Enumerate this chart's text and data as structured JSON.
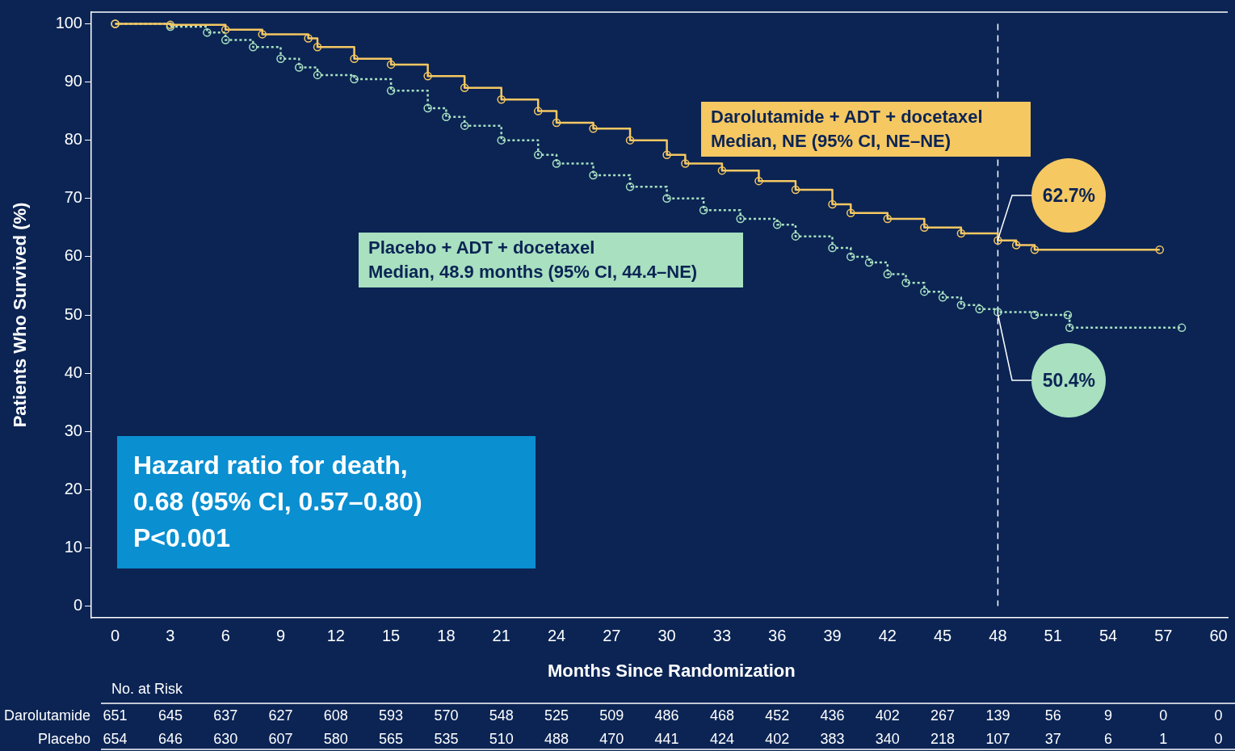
{
  "chart_data": {
    "type": "step",
    "xlabel": "Months Since Randomization",
    "ylabel": "Patients Who Survived (%)",
    "xlim": [
      -1.3,
      60.5
    ],
    "xticks": [
      0,
      3,
      6,
      9,
      12,
      15,
      18,
      21,
      24,
      27,
      30,
      33,
      36,
      39,
      42,
      45,
      48,
      51,
      54,
      57,
      60
    ],
    "ylim": [
      -2,
      102
    ],
    "yticks": [
      0,
      10,
      20,
      30,
      40,
      50,
      60,
      70,
      80,
      90,
      100
    ],
    "grid": false,
    "legend": false,
    "marker": "circle",
    "series": [
      {
        "name": "Darolutamide + ADT + docetaxel",
        "color": "#f5c862",
        "line_style": "solid",
        "x": [
          0,
          3,
          6,
          8,
          10.5,
          11,
          13,
          15,
          17,
          19,
          21,
          23,
          24,
          26,
          28,
          30,
          31,
          33,
          35,
          37,
          39,
          40,
          42,
          44,
          46,
          48,
          49,
          50,
          56.8
        ],
        "values": [
          100,
          99.8,
          99,
          98.2,
          97.5,
          96,
          94,
          93,
          91,
          89,
          87,
          85,
          83,
          82,
          80,
          77.5,
          76,
          74.8,
          73,
          71.5,
          69,
          67.5,
          66.5,
          65,
          64,
          62.8,
          62,
          61.2,
          61.2
        ]
      },
      {
        "name": "Placebo + ADT + docetaxel",
        "color": "#a8e0c0",
        "line_style": "dotted",
        "x": [
          0,
          3,
          5,
          6,
          7.5,
          9,
          10,
          11,
          13,
          15,
          17,
          18,
          19,
          21,
          23,
          24,
          26,
          28,
          30,
          32,
          34,
          36,
          37,
          39,
          40,
          41,
          42,
          43,
          44,
          45,
          46,
          47,
          48,
          50,
          51.8,
          51.9,
          58
        ],
        "values": [
          100,
          99.5,
          98.5,
          97.2,
          96,
          94,
          92.5,
          91.2,
          90.5,
          88.5,
          85.5,
          84,
          82.5,
          80,
          77.5,
          76,
          74,
          72,
          70,
          68,
          66.5,
          65.5,
          63.5,
          61.5,
          60,
          59,
          57,
          55.5,
          54,
          53,
          51.7,
          51,
          50.5,
          50,
          50,
          47.8,
          47.8
        ]
      }
    ],
    "ref_lines": [
      {
        "axis": "x",
        "value": 48,
        "color": "#ffffff",
        "line_style": "dashed"
      }
    ],
    "annotations": [
      "Median, NE (95% CI, NE–NE)",
      "Median, 48.9 months (95% CI, 44.4–NE)",
      "Hazard ratio for death,\n0.68 (95% CI, 0.57–0.80)\nP<0.001",
      {
        "text": "62.7%",
        "x": 48,
        "y": 62.7
      },
      {
        "text": "50.4%",
        "x": 48,
        "y": 50.4
      },
      "No. at Risk",
      "Darolutamide 651 645 637 627 608 593 570 548 525 509 486 468 452 436 402 267 139 56 9 0 0",
      "Placebo 654 646 630 607 580 565 535 510 488 470 441 424 402 383 340 218 107 37 6 1 0"
    ]
  }
}
